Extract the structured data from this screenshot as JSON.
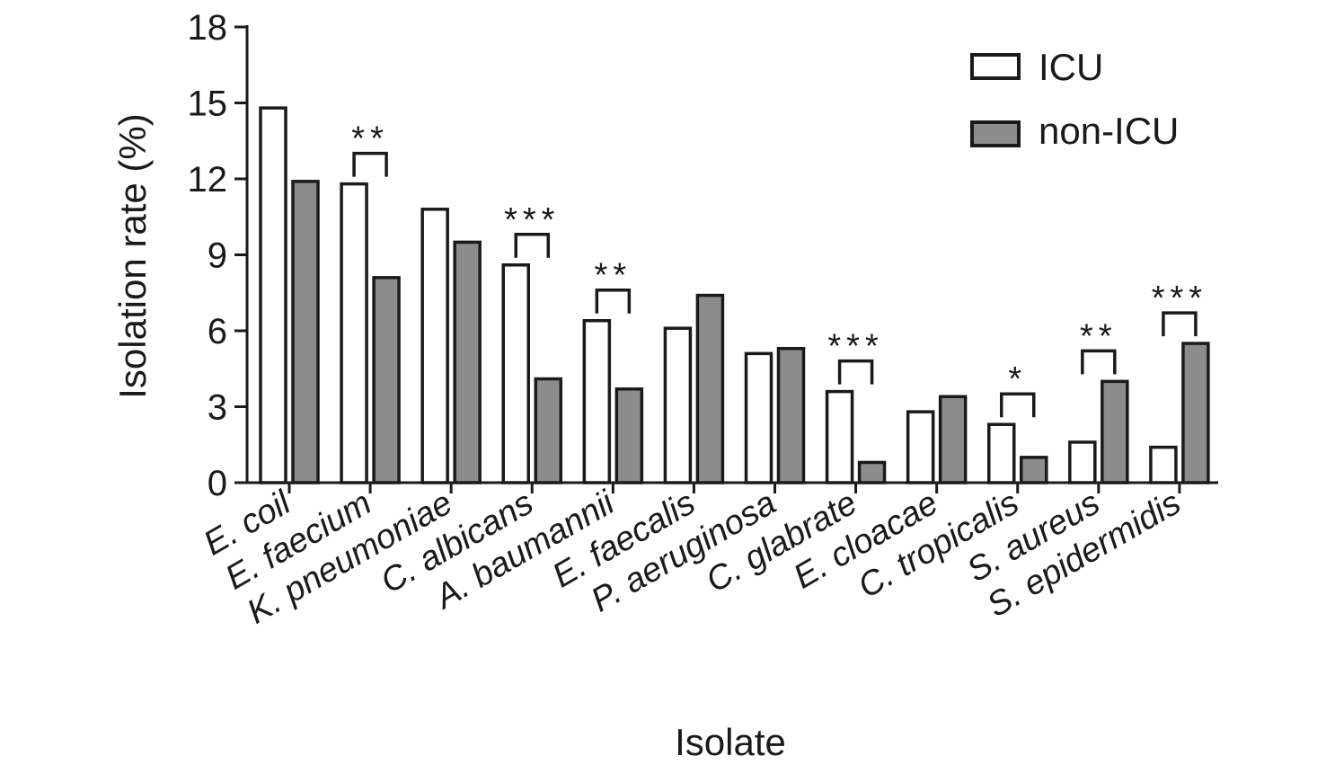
{
  "chart_data": {
    "type": "bar",
    "xlabel": "Isolate",
    "ylabel": "Isolation rate (%)",
    "ylim": [
      0,
      18
    ],
    "yticks": [
      0,
      3,
      6,
      9,
      12,
      15,
      18
    ],
    "categories": [
      "E. coil",
      "E. faecium",
      "K. pneumoniae",
      "C. albicans",
      "A. baumannii",
      "E. faecalis",
      "P. aeruginosa",
      "C. glabrate",
      "E. cloacae",
      "C. tropicalis",
      "S. aureus",
      "S. epidermidis"
    ],
    "series": [
      {
        "name": "ICU",
        "color": "#ffffff",
        "values": [
          14.8,
          11.8,
          10.8,
          8.6,
          6.4,
          6.1,
          5.1,
          3.6,
          2.8,
          2.3,
          1.6,
          1.4
        ]
      },
      {
        "name": "non-ICU",
        "color": "#8c8c8c",
        "values": [
          11.9,
          8.1,
          9.5,
          4.1,
          3.7,
          7.4,
          5.3,
          0.8,
          3.4,
          1.0,
          4.0,
          5.5
        ]
      }
    ],
    "significance": [
      "",
      "**",
      "",
      "***",
      "**",
      "",
      "",
      "***",
      "",
      "*",
      "**",
      "***"
    ],
    "legend_position": "top-right",
    "grid": false
  }
}
